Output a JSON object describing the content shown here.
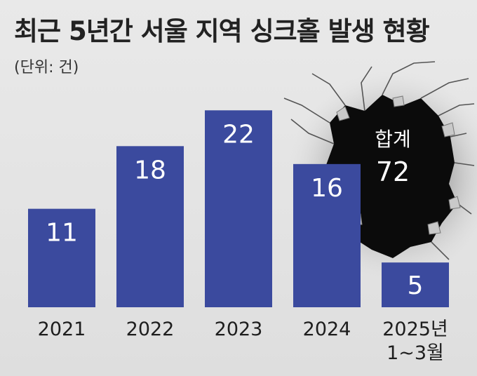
{
  "page": {
    "title": "최근 5년간 서울 지역 싱크홀 발생 현황",
    "unit": "(단위: 건)"
  },
  "colors": {
    "bar": "#3b4a9e",
    "bar_text": "#ffffff",
    "background": "#e6e6e6",
    "hole": "#0b0b0b"
  },
  "chart_data": {
    "type": "bar",
    "title": "최근 5년간 서울 지역 싱크홀 발생 현황",
    "unit": "(단위: 건)",
    "categories": [
      [
        "2021"
      ],
      [
        "2022"
      ],
      [
        "2023"
      ],
      [
        "2024"
      ],
      [
        "2025년",
        "1~3월"
      ]
    ],
    "values": [
      11,
      18,
      22,
      16,
      5
    ],
    "data_labels": [
      "11",
      "18",
      "22",
      "16",
      "5"
    ],
    "annotation": {
      "label": "합계",
      "value": "72"
    },
    "grid": false,
    "legend": "none"
  }
}
